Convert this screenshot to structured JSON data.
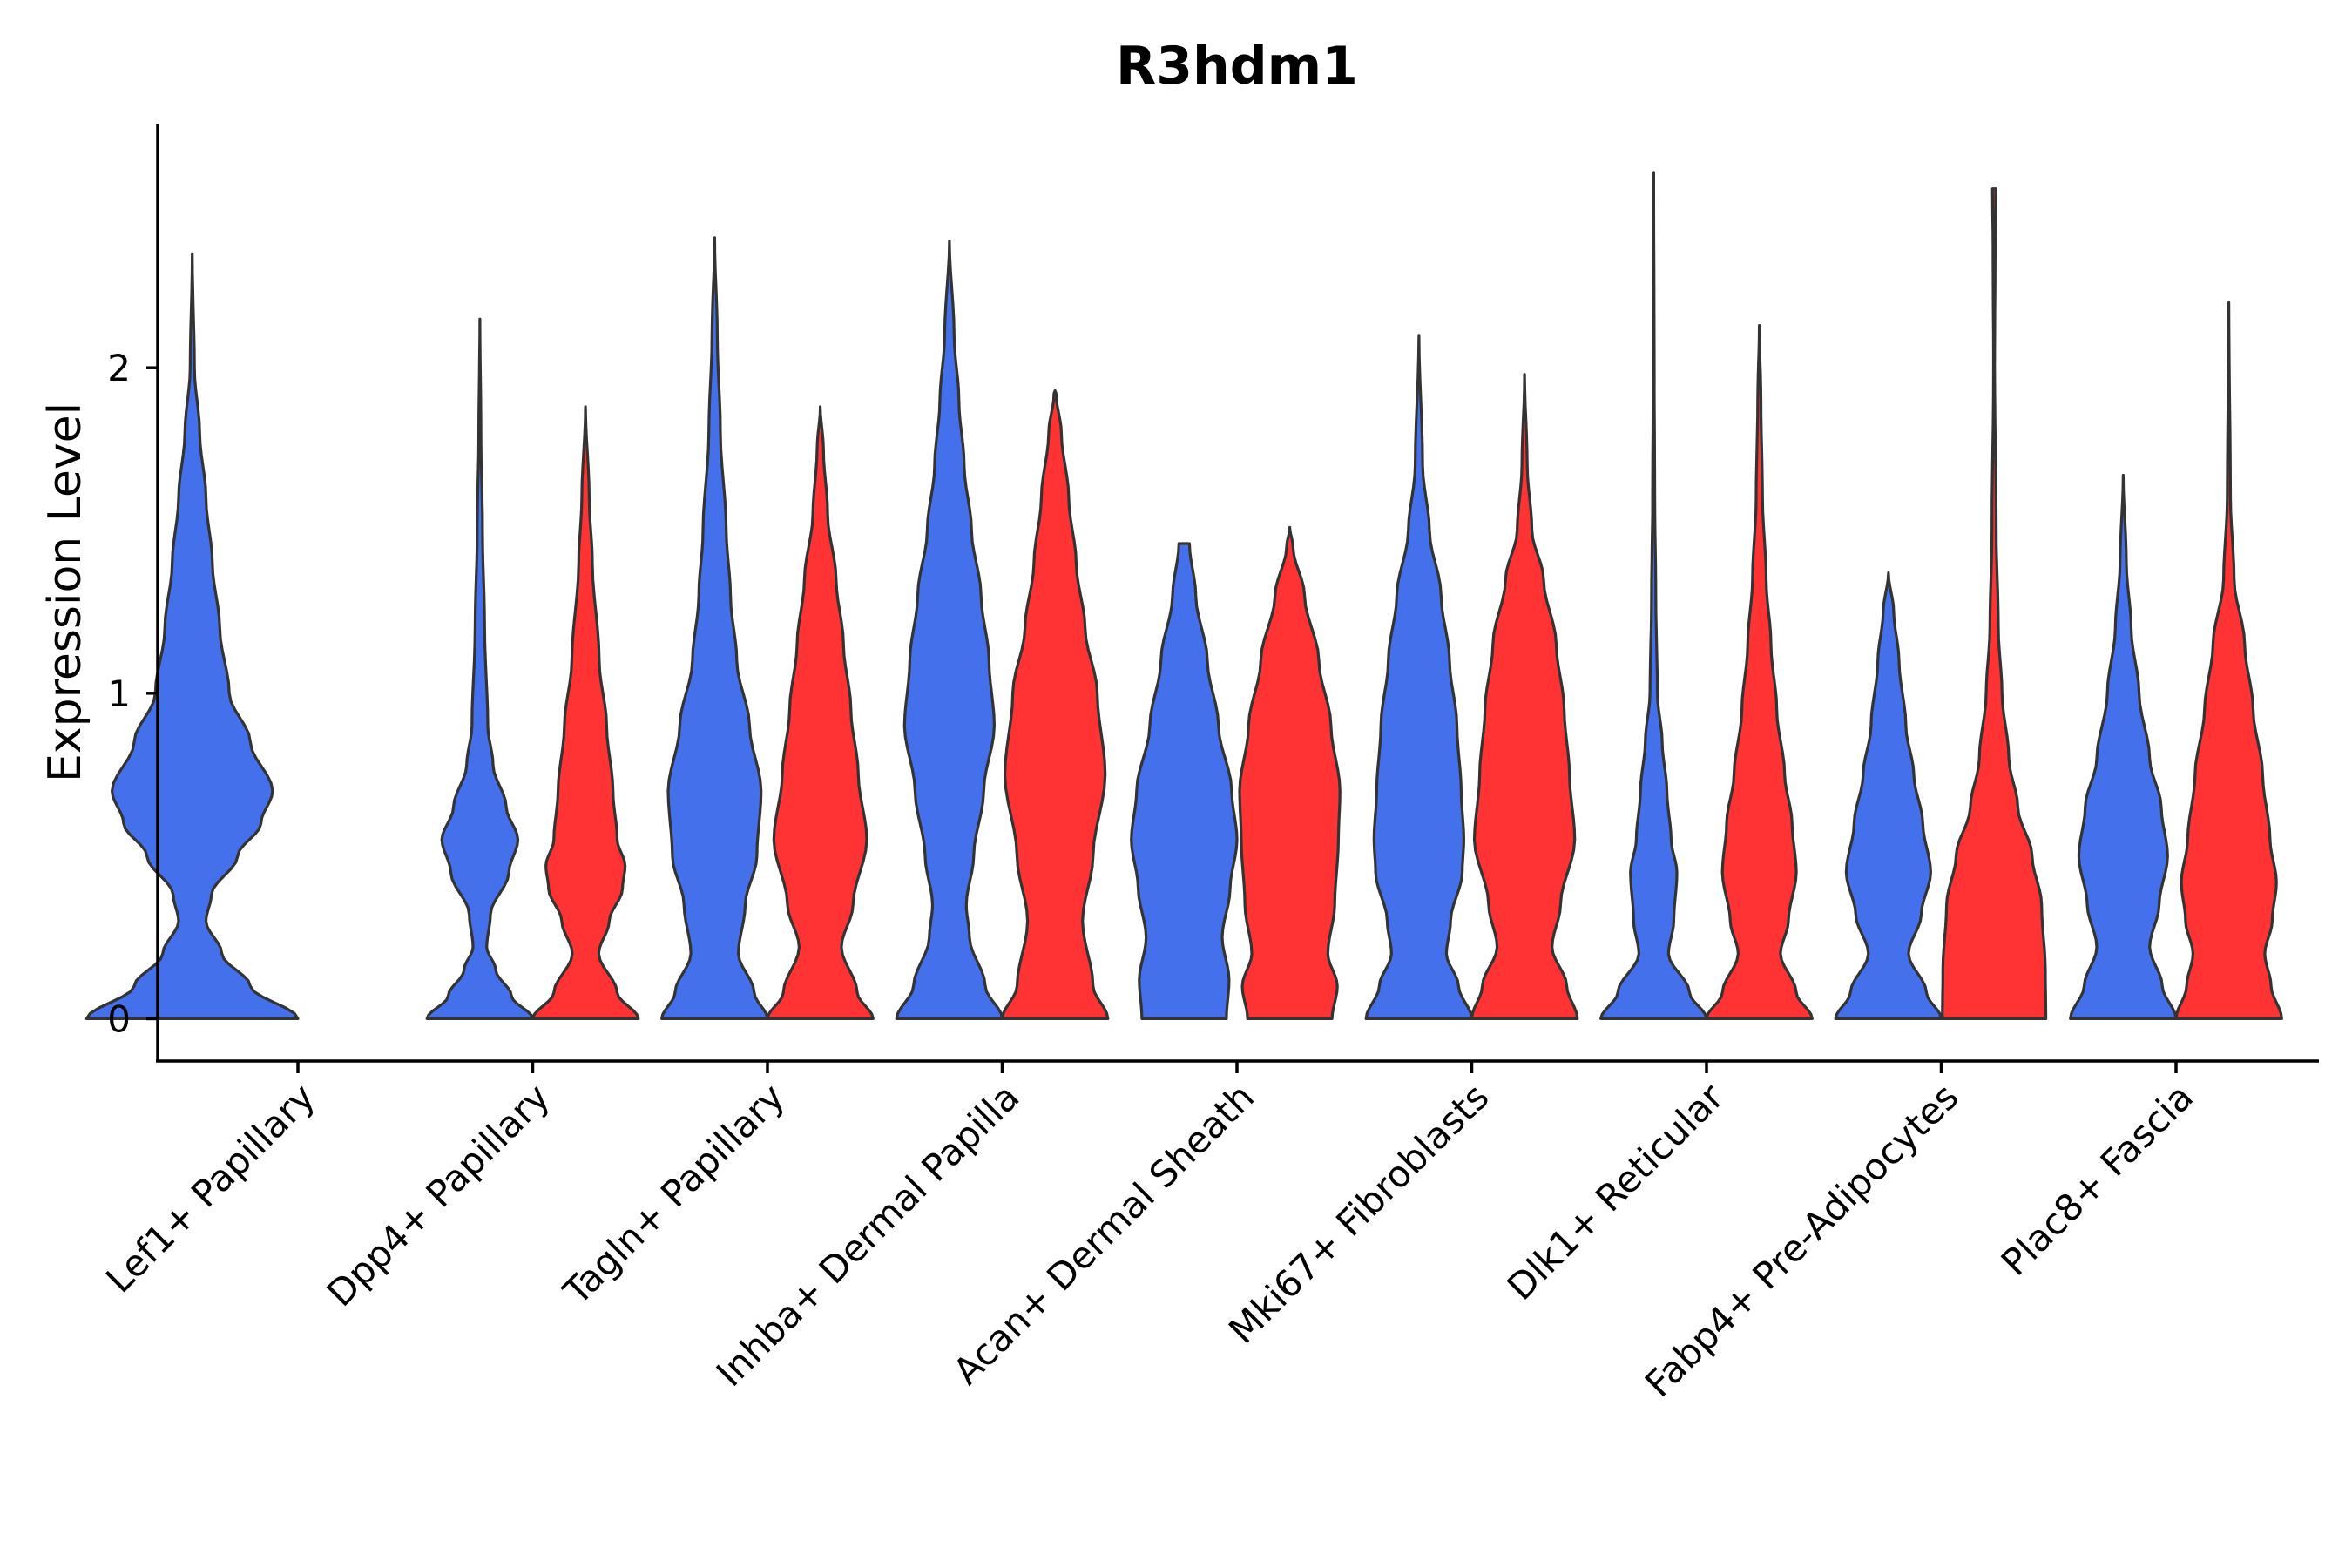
{
  "chart_data": {
    "type": "violin",
    "title": "R3hdm1",
    "xlabel": "",
    "ylabel": "Expression Level",
    "ylim": [
      -0.13,
      2.75
    ],
    "yticks": [
      0,
      1,
      2
    ],
    "grid": false,
    "legend": "none",
    "split_colors": {
      "left": "#4470EC",
      "right": "#FF3333"
    },
    "categories": [
      "Lef1+ Papillary",
      "Dpp4+ Papillary",
      "Tagln+ Papillary",
      "Inhba+ Dermal Papilla",
      "Acan+ Dermal Sheath",
      "Mki67+ Fibroblasts",
      "Dlk1+ Reticular",
      "Fabp4+ Pre-Adipocytes",
      "Plac8+ Fascia"
    ],
    "violins": [
      {
        "category": "Lef1+ Papillary",
        "group": "left",
        "max": 2.35,
        "width": 0.9,
        "profile": [
          [
            0.0,
            1.0
          ],
          [
            0.1,
            0.55
          ],
          [
            0.2,
            0.28
          ],
          [
            0.3,
            0.13
          ],
          [
            0.38,
            0.18
          ],
          [
            0.5,
            0.43
          ],
          [
            0.6,
            0.65
          ],
          [
            0.7,
            0.76
          ],
          [
            0.85,
            0.55
          ],
          [
            1.0,
            0.35
          ],
          [
            1.2,
            0.26
          ],
          [
            1.4,
            0.19
          ],
          [
            1.6,
            0.13
          ],
          [
            1.8,
            0.07
          ],
          [
            2.0,
            0.02
          ],
          [
            2.35,
            0.0
          ]
        ]
      },
      {
        "category": "Dpp4+ Papillary",
        "group": "left",
        "max": 2.15,
        "width": 0.45,
        "profile": [
          [
            0.0,
            1.0
          ],
          [
            0.07,
            0.6
          ],
          [
            0.15,
            0.3
          ],
          [
            0.22,
            0.13
          ],
          [
            0.32,
            0.2
          ],
          [
            0.45,
            0.55
          ],
          [
            0.55,
            0.72
          ],
          [
            0.65,
            0.5
          ],
          [
            0.78,
            0.25
          ],
          [
            0.9,
            0.15
          ],
          [
            1.2,
            0.09
          ],
          [
            1.5,
            0.05
          ],
          [
            1.8,
            0.02
          ],
          [
            2.15,
            0.0
          ]
        ]
      },
      {
        "category": "Dpp4+ Papillary",
        "group": "right",
        "max": 1.88,
        "width": 0.45,
        "profile": [
          [
            0.0,
            1.0
          ],
          [
            0.08,
            0.6
          ],
          [
            0.2,
            0.25
          ],
          [
            0.3,
            0.45
          ],
          [
            0.4,
            0.7
          ],
          [
            0.47,
            0.75
          ],
          [
            0.55,
            0.6
          ],
          [
            0.7,
            0.52
          ],
          [
            0.9,
            0.4
          ],
          [
            1.1,
            0.26
          ],
          [
            1.4,
            0.13
          ],
          [
            1.6,
            0.07
          ],
          [
            1.88,
            0.0
          ]
        ]
      },
      {
        "category": "Tagln+ Papillary",
        "group": "left",
        "max": 2.4,
        "width": 0.45,
        "profile": [
          [
            0.0,
            1.0
          ],
          [
            0.08,
            0.75
          ],
          [
            0.2,
            0.45
          ],
          [
            0.35,
            0.58
          ],
          [
            0.5,
            0.8
          ],
          [
            0.7,
            0.88
          ],
          [
            0.9,
            0.66
          ],
          [
            1.1,
            0.42
          ],
          [
            1.3,
            0.3
          ],
          [
            1.5,
            0.22
          ],
          [
            1.8,
            0.11
          ],
          [
            2.1,
            0.05
          ],
          [
            2.4,
            0.0
          ]
        ]
      },
      {
        "category": "Tagln+ Papillary",
        "group": "right",
        "max": 1.88,
        "width": 0.45,
        "profile": [
          [
            0.0,
            1.0
          ],
          [
            0.08,
            0.7
          ],
          [
            0.22,
            0.4
          ],
          [
            0.35,
            0.62
          ],
          [
            0.55,
            0.88
          ],
          [
            0.75,
            0.72
          ],
          [
            0.95,
            0.58
          ],
          [
            1.15,
            0.44
          ],
          [
            1.35,
            0.3
          ],
          [
            1.55,
            0.14
          ],
          [
            1.75,
            0.06
          ],
          [
            1.88,
            0.0
          ]
        ]
      },
      {
        "category": "Inhba+ Dermal Papilla",
        "group": "left",
        "max": 2.39,
        "width": 0.45,
        "profile": [
          [
            0.0,
            1.0
          ],
          [
            0.1,
            0.68
          ],
          [
            0.25,
            0.38
          ],
          [
            0.35,
            0.32
          ],
          [
            0.5,
            0.46
          ],
          [
            0.7,
            0.65
          ],
          [
            0.9,
            0.85
          ],
          [
            1.1,
            0.75
          ],
          [
            1.3,
            0.6
          ],
          [
            1.5,
            0.42
          ],
          [
            1.7,
            0.28
          ],
          [
            1.9,
            0.18
          ],
          [
            2.1,
            0.09
          ],
          [
            2.39,
            0.0
          ]
        ]
      },
      {
        "category": "Inhba+ Dermal Papilla",
        "group": "right",
        "max": 1.93,
        "width": 0.45,
        "profile": [
          [
            0.0,
            1.0
          ],
          [
            0.1,
            0.72
          ],
          [
            0.3,
            0.52
          ],
          [
            0.5,
            0.72
          ],
          [
            0.75,
            0.95
          ],
          [
            1.0,
            0.8
          ],
          [
            1.2,
            0.57
          ],
          [
            1.4,
            0.4
          ],
          [
            1.6,
            0.26
          ],
          [
            1.8,
            0.12
          ],
          [
            1.92,
            0.02
          ],
          [
            1.93,
            0.0
          ]
        ]
      },
      {
        "category": "Acan+ Dermal Sheath",
        "group": "left",
        "max": 1.46,
        "width": 0.45,
        "profile": [
          [
            0.0,
            0.8
          ],
          [
            0.12,
            0.85
          ],
          [
            0.25,
            0.72
          ],
          [
            0.4,
            0.87
          ],
          [
            0.55,
            1.0
          ],
          [
            0.7,
            0.9
          ],
          [
            0.9,
            0.65
          ],
          [
            1.1,
            0.44
          ],
          [
            1.3,
            0.22
          ],
          [
            1.46,
            0.1
          ]
        ]
      },
      {
        "category": "Acan+ Dermal Sheath",
        "group": "right",
        "max": 1.51,
        "width": 0.45,
        "profile": [
          [
            0.0,
            0.8
          ],
          [
            0.1,
            0.9
          ],
          [
            0.2,
            0.72
          ],
          [
            0.35,
            0.85
          ],
          [
            0.55,
            0.92
          ],
          [
            0.7,
            0.95
          ],
          [
            0.9,
            0.78
          ],
          [
            1.1,
            0.55
          ],
          [
            1.3,
            0.28
          ],
          [
            1.45,
            0.06
          ],
          [
            1.51,
            0.0
          ]
        ]
      },
      {
        "category": "Mki67+ Fibroblasts",
        "group": "left",
        "max": 2.1,
        "width": 0.45,
        "profile": [
          [
            0.0,
            1.0
          ],
          [
            0.1,
            0.75
          ],
          [
            0.2,
            0.52
          ],
          [
            0.3,
            0.6
          ],
          [
            0.45,
            0.82
          ],
          [
            0.55,
            0.85
          ],
          [
            0.7,
            0.8
          ],
          [
            0.9,
            0.72
          ],
          [
            1.1,
            0.58
          ],
          [
            1.3,
            0.42
          ],
          [
            1.5,
            0.2
          ],
          [
            1.7,
            0.07
          ],
          [
            2.1,
            0.0
          ]
        ]
      },
      {
        "category": "Mki67+ Fibroblasts",
        "group": "right",
        "max": 1.98,
        "width": 0.45,
        "profile": [
          [
            0.0,
            1.0
          ],
          [
            0.1,
            0.8
          ],
          [
            0.22,
            0.52
          ],
          [
            0.35,
            0.68
          ],
          [
            0.55,
            0.95
          ],
          [
            0.75,
            0.85
          ],
          [
            0.95,
            0.75
          ],
          [
            1.15,
            0.6
          ],
          [
            1.35,
            0.36
          ],
          [
            1.5,
            0.14
          ],
          [
            1.7,
            0.05
          ],
          [
            1.98,
            0.0
          ]
        ]
      },
      {
        "category": "Dlk1+ Reticular",
        "group": "left",
        "max": 2.6,
        "width": 0.45,
        "profile": [
          [
            0.0,
            1.0
          ],
          [
            0.08,
            0.68
          ],
          [
            0.2,
            0.28
          ],
          [
            0.3,
            0.38
          ],
          [
            0.45,
            0.44
          ],
          [
            0.55,
            0.33
          ],
          [
            0.7,
            0.25
          ],
          [
            0.85,
            0.16
          ],
          [
            1.0,
            0.07
          ],
          [
            1.3,
            0.04
          ],
          [
            1.6,
            0.02
          ],
          [
            2.0,
            0.01
          ],
          [
            2.6,
            0.0
          ]
        ]
      },
      {
        "category": "Dlk1+ Reticular",
        "group": "right",
        "max": 2.13,
        "width": 0.45,
        "profile": [
          [
            0.0,
            1.0
          ],
          [
            0.08,
            0.7
          ],
          [
            0.2,
            0.4
          ],
          [
            0.3,
            0.55
          ],
          [
            0.45,
            0.7
          ],
          [
            0.6,
            0.62
          ],
          [
            0.75,
            0.48
          ],
          [
            0.95,
            0.33
          ],
          [
            1.15,
            0.22
          ],
          [
            1.35,
            0.13
          ],
          [
            1.6,
            0.06
          ],
          [
            1.9,
            0.03
          ],
          [
            2.13,
            0.0
          ]
        ]
      },
      {
        "category": "Fabp4+ Pre-Adipocytes",
        "group": "left",
        "max": 1.37,
        "width": 0.45,
        "profile": [
          [
            0.0,
            1.0
          ],
          [
            0.08,
            0.72
          ],
          [
            0.2,
            0.38
          ],
          [
            0.32,
            0.62
          ],
          [
            0.45,
            0.8
          ],
          [
            0.6,
            0.65
          ],
          [
            0.75,
            0.48
          ],
          [
            0.9,
            0.33
          ],
          [
            1.1,
            0.2
          ],
          [
            1.25,
            0.1
          ],
          [
            1.37,
            0.0
          ]
        ]
      },
      {
        "category": "Fabp4+ Pre-Adipocytes",
        "group": "right",
        "max": 2.55,
        "width": 0.45,
        "profile": [
          [
            0.0,
            0.98
          ],
          [
            0.15,
            0.97
          ],
          [
            0.35,
            0.9
          ],
          [
            0.5,
            0.72
          ],
          [
            0.65,
            0.45
          ],
          [
            0.8,
            0.28
          ],
          [
            1.0,
            0.15
          ],
          [
            1.2,
            0.08
          ],
          [
            1.5,
            0.04
          ],
          [
            2.0,
            0.01
          ],
          [
            2.35,
            0.02
          ],
          [
            2.55,
            0.03
          ]
        ]
      },
      {
        "category": "Plac8+ Fascia",
        "group": "left",
        "max": 1.67,
        "width": 0.45,
        "profile": [
          [
            0.0,
            1.0
          ],
          [
            0.1,
            0.74
          ],
          [
            0.22,
            0.5
          ],
          [
            0.35,
            0.68
          ],
          [
            0.5,
            0.84
          ],
          [
            0.65,
            0.72
          ],
          [
            0.8,
            0.5
          ],
          [
            1.0,
            0.3
          ],
          [
            1.2,
            0.15
          ],
          [
            1.4,
            0.06
          ],
          [
            1.67,
            0.0
          ]
        ]
      },
      {
        "category": "Plac8+ Fascia",
        "group": "right",
        "max": 2.2,
        "width": 0.45,
        "profile": [
          [
            0.0,
            1.0
          ],
          [
            0.1,
            0.8
          ],
          [
            0.2,
            0.68
          ],
          [
            0.3,
            0.82
          ],
          [
            0.42,
            0.9
          ],
          [
            0.55,
            0.78
          ],
          [
            0.75,
            0.64
          ],
          [
            0.95,
            0.46
          ],
          [
            1.15,
            0.3
          ],
          [
            1.35,
            0.1
          ],
          [
            1.6,
            0.03
          ],
          [
            2.2,
            0.0
          ]
        ]
      }
    ]
  }
}
